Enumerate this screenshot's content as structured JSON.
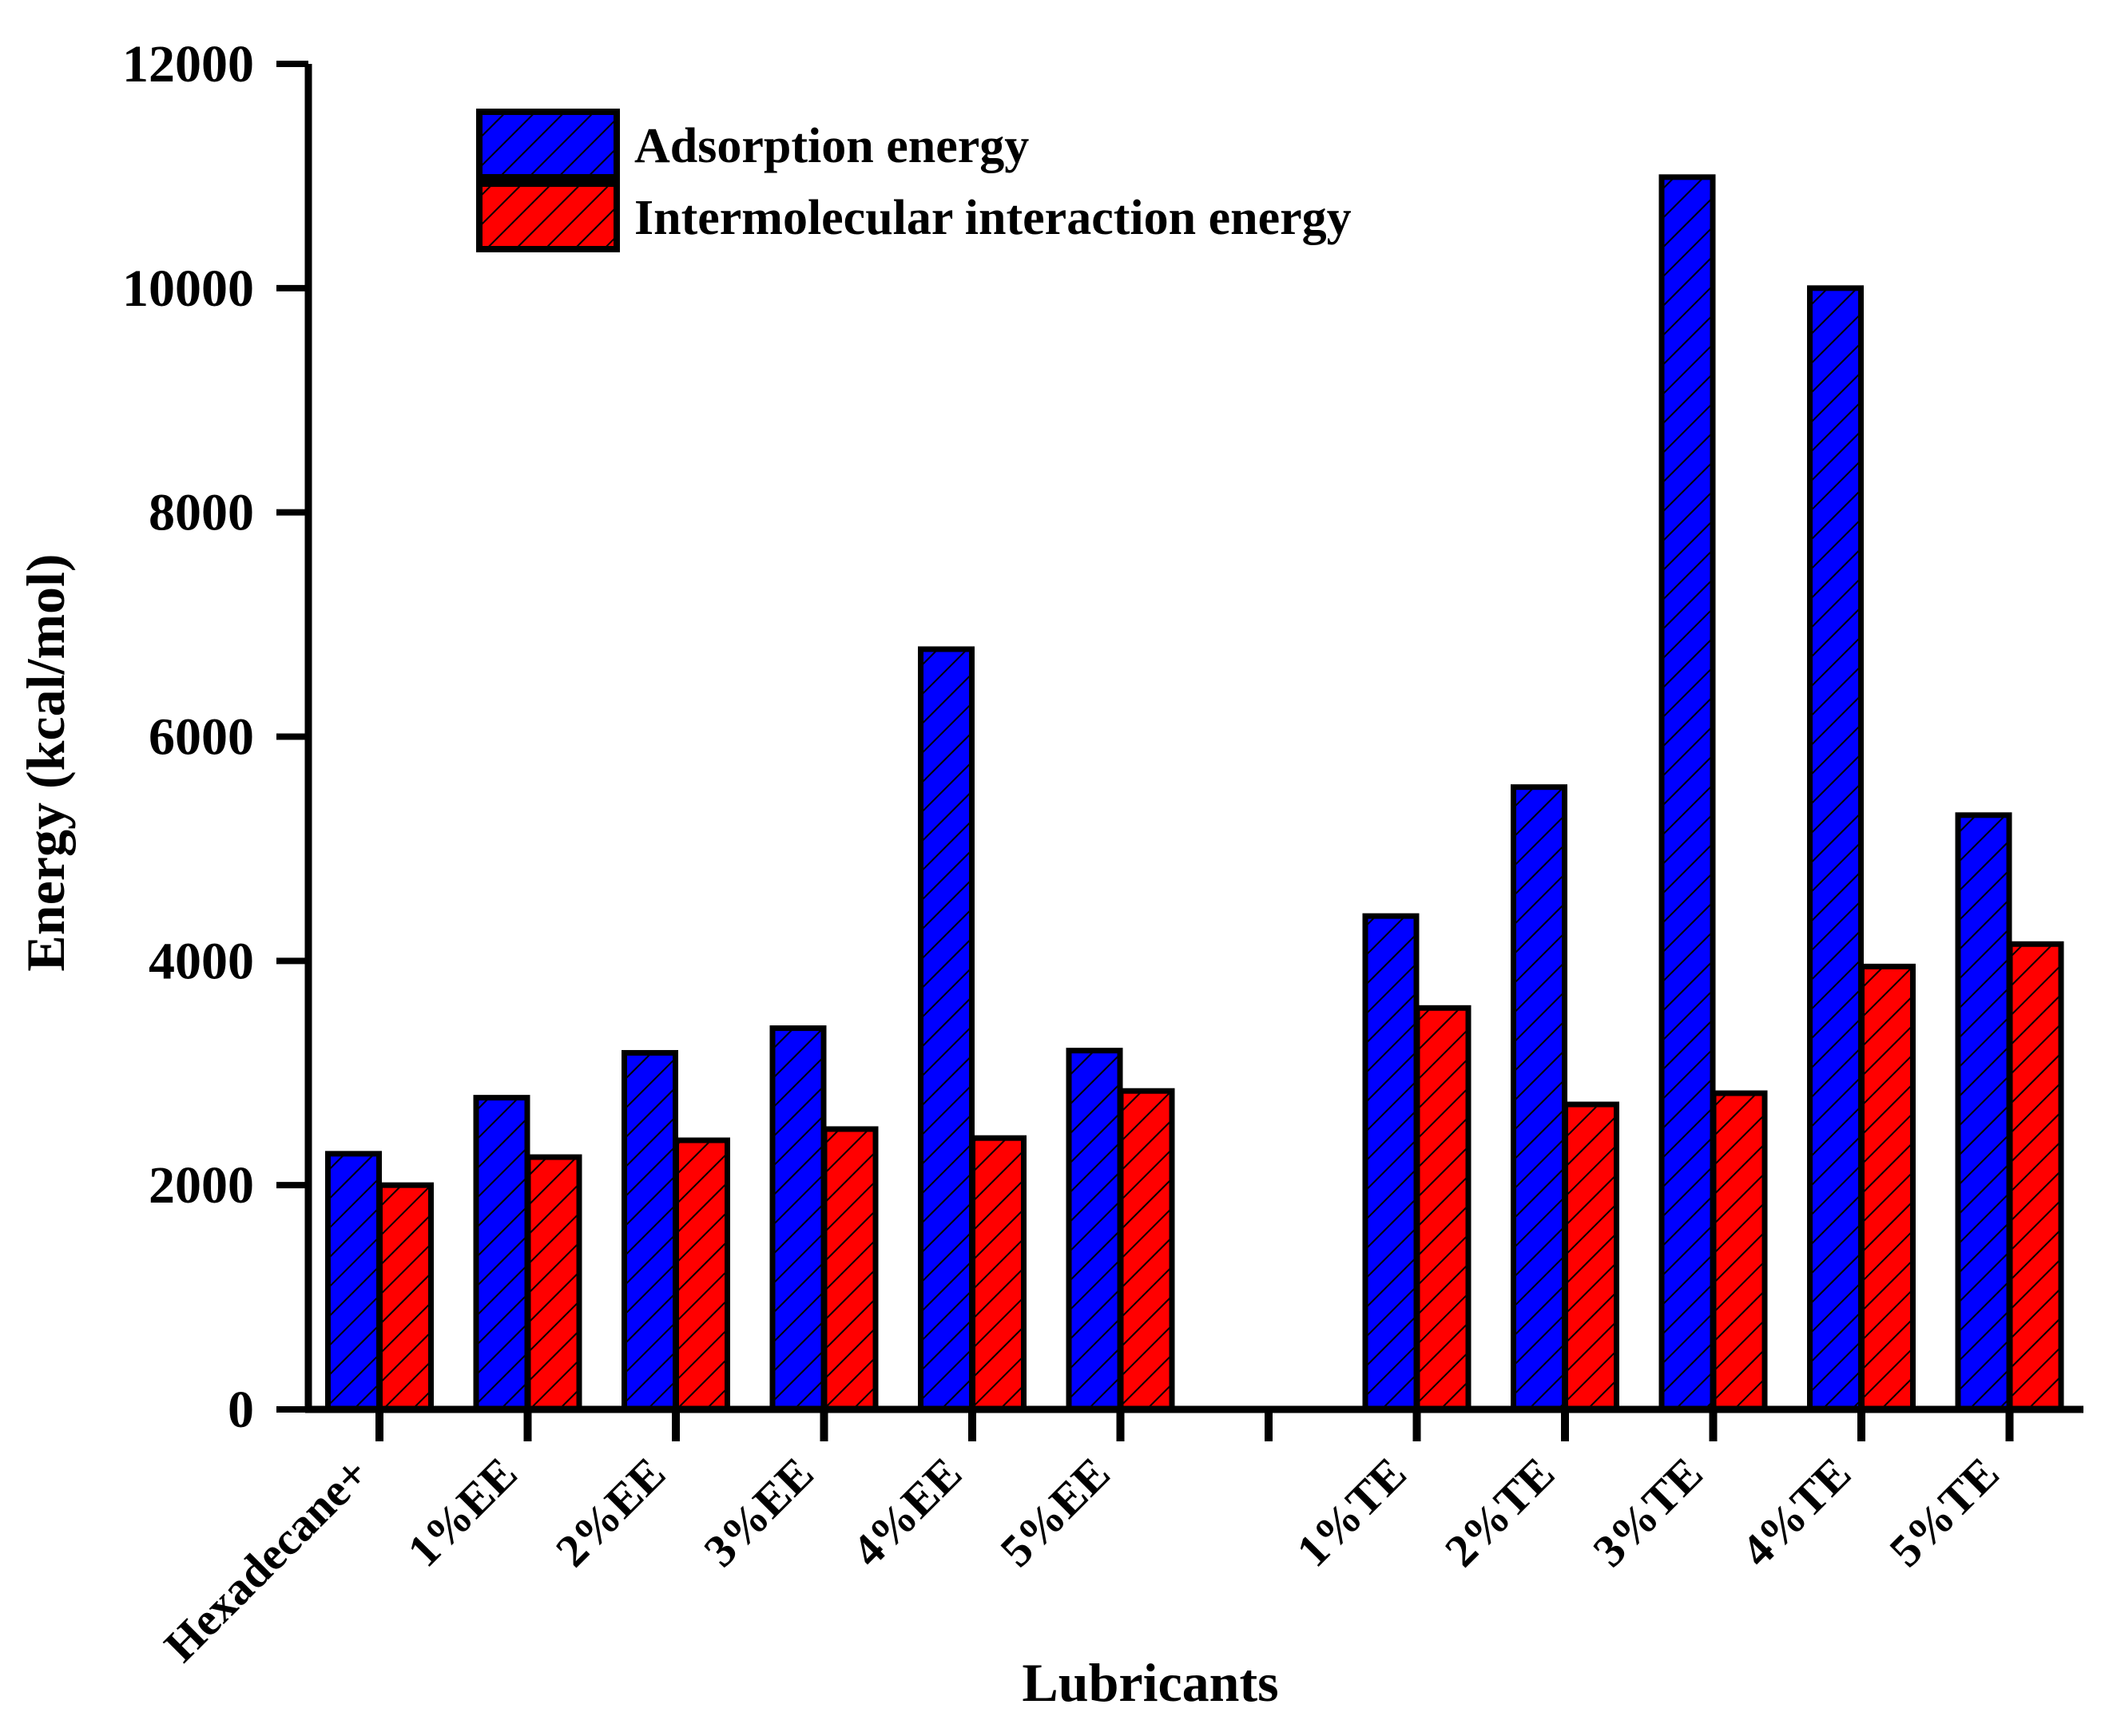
{
  "chart_data": {
    "type": "bar",
    "xlabel": "Lubricants",
    "ylabel": "Energy (kcal/mol)",
    "ylim": [
      0,
      12000
    ],
    "yticks": [
      0,
      2000,
      4000,
      6000,
      8000,
      10000,
      12000
    ],
    "categories": [
      "Hexadecane+",
      "1%EE",
      "2%EE",
      "3%EE",
      "4%EE",
      "5%EE",
      "",
      "1%TE",
      "2%TE",
      "3%TE",
      "4%TE",
      "5%TE"
    ],
    "series": [
      {
        "name": "Adsorption energy",
        "color": "#0000ff",
        "values": [
          2280,
          2780,
          3180,
          3400,
          6780,
          3200,
          null,
          4400,
          5550,
          10990,
          10000,
          5300
        ]
      },
      {
        "name": "Intermolecular interaction energy",
        "color": "#ff0000",
        "values": [
          2000,
          2250,
          2400,
          2500,
          2420,
          2840,
          null,
          3580,
          2720,
          2820,
          3950,
          4150
        ]
      }
    ],
    "legend_position": "top-left",
    "grid": false,
    "bar_pattern": "diagonal-hatch"
  }
}
